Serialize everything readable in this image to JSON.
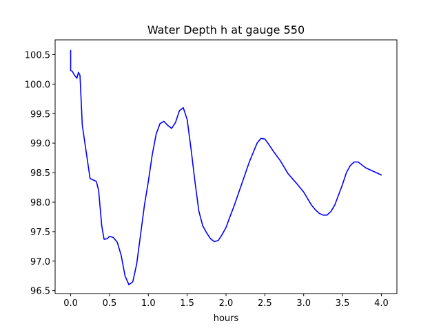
{
  "chart_data": {
    "type": "line",
    "title": "Water Depth h at gauge 550",
    "xlabel": "hours",
    "ylabel": "",
    "xlim": [
      -0.2,
      4.2
    ],
    "ylim": [
      96.45,
      100.75
    ],
    "xticks": [
      0.0,
      0.5,
      1.0,
      1.5,
      2.0,
      2.5,
      3.0,
      3.5,
      4.0
    ],
    "xtick_labels": [
      "0.0",
      "0.5",
      "1.0",
      "1.5",
      "2.0",
      "2.5",
      "3.0",
      "3.5",
      "4.0"
    ],
    "yticks": [
      96.5,
      97.0,
      97.5,
      98.0,
      98.5,
      99.0,
      99.5,
      100.0,
      100.5
    ],
    "ytick_labels": [
      "96.5",
      "97.0",
      "97.5",
      "98.0",
      "98.5",
      "99.0",
      "99.5",
      "100.0",
      "100.5"
    ],
    "grid": false,
    "series": [
      {
        "color": "#0000ff",
        "x": [
          0.0,
          0.0,
          0.02,
          0.05,
          0.08,
          0.1,
          0.12,
          0.15,
          0.2,
          0.25,
          0.3,
          0.33,
          0.36,
          0.4,
          0.43,
          0.47,
          0.5,
          0.55,
          0.6,
          0.65,
          0.7,
          0.75,
          0.8,
          0.85,
          0.9,
          0.95,
          1.0,
          1.05,
          1.1,
          1.15,
          1.2,
          1.25,
          1.3,
          1.35,
          1.4,
          1.45,
          1.5,
          1.55,
          1.6,
          1.65,
          1.7,
          1.75,
          1.8,
          1.85,
          1.9,
          1.95,
          2.0,
          2.05,
          2.1,
          2.2,
          2.3,
          2.4,
          2.45,
          2.5,
          2.55,
          2.6,
          2.7,
          2.8,
          2.9,
          3.0,
          3.05,
          3.1,
          3.15,
          3.2,
          3.25,
          3.3,
          3.35,
          3.4,
          3.5,
          3.55,
          3.6,
          3.65,
          3.7,
          3.8,
          3.9,
          4.0
        ],
        "y": [
          100.57,
          100.23,
          100.22,
          100.15,
          100.1,
          100.2,
          100.15,
          99.3,
          98.85,
          98.4,
          98.37,
          98.35,
          98.2,
          97.6,
          97.37,
          97.38,
          97.42,
          97.4,
          97.32,
          97.1,
          96.75,
          96.6,
          96.65,
          96.95,
          97.45,
          97.95,
          98.35,
          98.8,
          99.15,
          99.33,
          99.37,
          99.3,
          99.25,
          99.35,
          99.55,
          99.6,
          99.4,
          98.9,
          98.35,
          97.85,
          97.6,
          97.48,
          97.38,
          97.33,
          97.35,
          97.45,
          97.57,
          97.75,
          97.92,
          98.3,
          98.68,
          99.0,
          99.08,
          99.07,
          98.98,
          98.88,
          98.7,
          98.48,
          98.33,
          98.17,
          98.06,
          97.95,
          97.87,
          97.81,
          97.78,
          97.78,
          97.84,
          97.95,
          98.3,
          98.5,
          98.62,
          98.68,
          98.68,
          98.58,
          98.52,
          98.46
        ]
      }
    ]
  }
}
